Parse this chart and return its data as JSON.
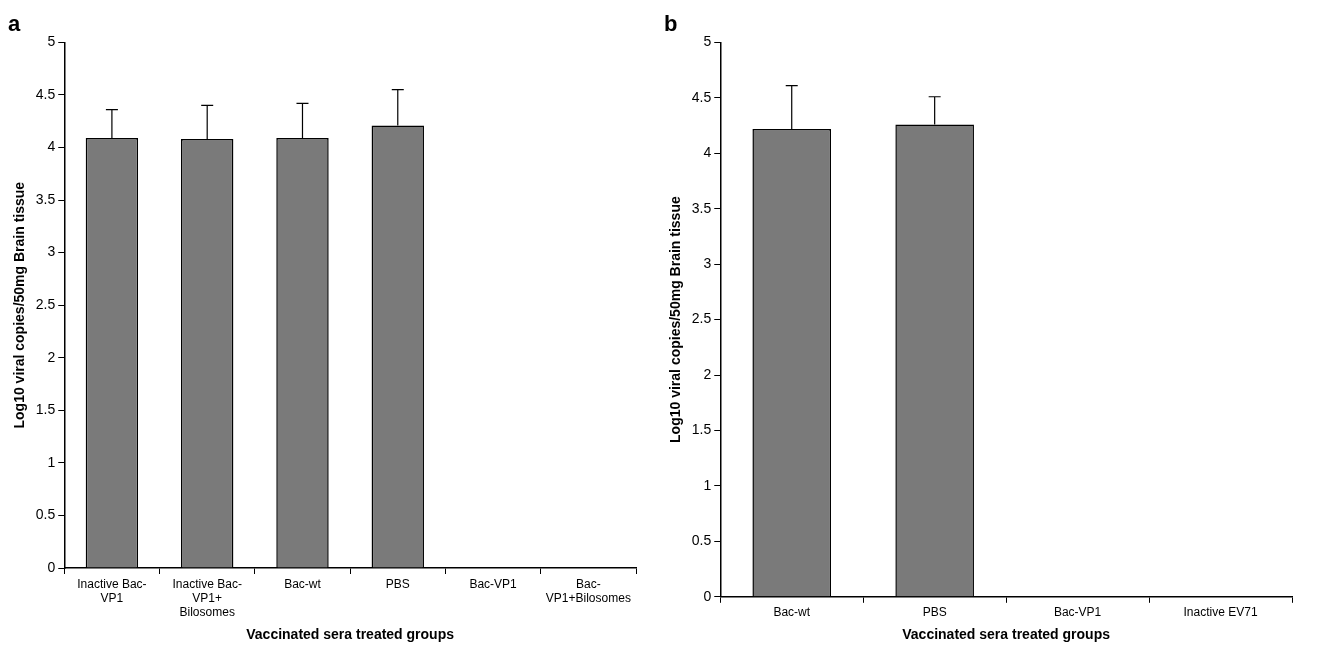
{
  "chart_data": [
    {
      "type": "bar",
      "title": "a",
      "xlabel": "Vaccinated sera treated groups",
      "ylabel": "Log10 viral copies/50mg Brain tissue",
      "categories": [
        "Inactive Bac-VP1",
        "Inactive Bac-VP1+ Bilosomes",
        "Bac-wt",
        "PBS",
        "Bac-VP1",
        "Bac-VP1+Bilosomes"
      ],
      "values": [
        4.09,
        4.08,
        4.09,
        4.21,
        0,
        0
      ],
      "errors": [
        0.27,
        0.32,
        0.33,
        0.34,
        null,
        null
      ],
      "color": "#7a7a7a",
      "ylim": [
        0,
        5
      ],
      "yticks": [
        0,
        0.5,
        1,
        1.5,
        2,
        2.5,
        3,
        3.5,
        4,
        4.5,
        5
      ],
      "grid": false,
      "legend": false
    },
    {
      "type": "bar",
      "title": "b",
      "xlabel": "Vaccinated sera treated groups",
      "ylabel": "Log10 viral copies/50mg Brain tissue",
      "categories": [
        "Bac-wt",
        "PBS",
        "Bac-VP1",
        "Inactive EV71"
      ],
      "values": [
        4.22,
        4.26,
        0,
        0
      ],
      "errors": [
        0.39,
        0.25,
        null,
        null
      ],
      "color": "#7a7a7a",
      "ylim": [
        0,
        5
      ],
      "yticks": [
        0,
        0.5,
        1,
        1.5,
        2,
        2.5,
        3,
        3.5,
        4,
        4.5,
        5
      ],
      "grid": false,
      "legend": false
    }
  ]
}
